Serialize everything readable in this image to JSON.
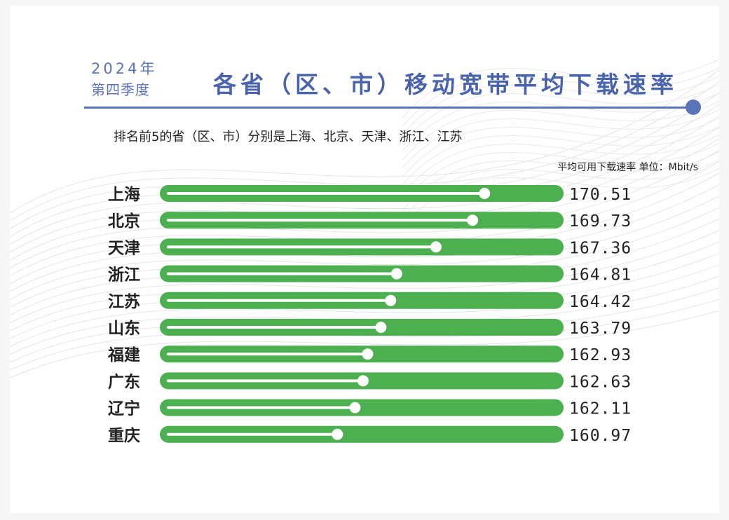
{
  "header": {
    "year": "2024年",
    "season": "第四季度",
    "title": "各省（区、市）移动宽带平均下载速率",
    "subtitle": "排名前5的省（区、市）分别是上海、北京、天津、浙江、江苏",
    "unit": "平均可用下载速率 单位：Mbit/s"
  },
  "colors": {
    "accent": "#5b74b8",
    "bar": "#4caf50",
    "track": "#ffffff",
    "label": "#222222"
  },
  "chart_data": {
    "type": "bar",
    "orientation": "horizontal",
    "categories": [
      "上海",
      "北京",
      "天津",
      "浙江",
      "江苏",
      "山东",
      "福建",
      "广东",
      "辽宁",
      "重庆"
    ],
    "values": [
      170.51,
      169.73,
      167.36,
      164.81,
      164.42,
      163.79,
      162.93,
      162.63,
      162.11,
      160.97
    ],
    "value_labels": [
      "170.51",
      "169.73",
      "167.36",
      "164.81",
      "164.42",
      "163.79",
      "162.93",
      "162.63",
      "162.11",
      "160.97"
    ],
    "title": "各省（区、市）移动宽带平均下载速率",
    "xlabel": "平均可用下载速率 单位：Mbit/s",
    "ylabel": "",
    "grid": false,
    "legend": "none"
  }
}
